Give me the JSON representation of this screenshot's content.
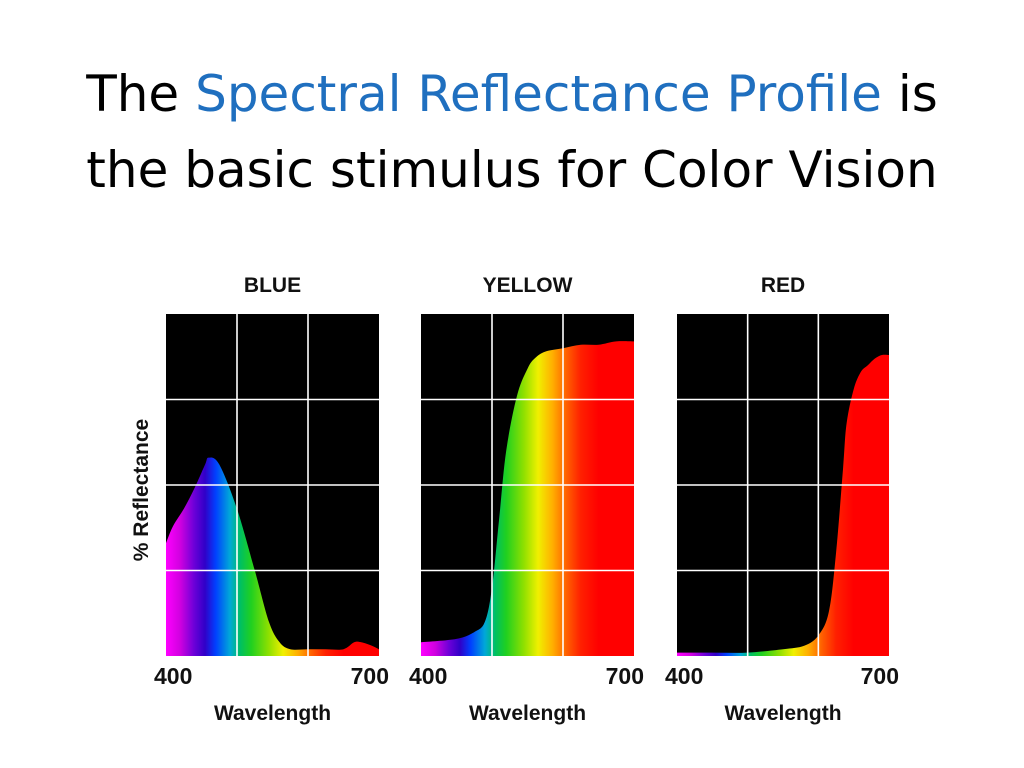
{
  "title": {
    "part1": "The ",
    "highlight": "Spectral Reflectance Profile",
    "part2": " is",
    "line2": "the basic stimulus for Color Vision",
    "highlight_color": "#1f6fbf"
  },
  "chart_data": [
    {
      "type": "area",
      "title": "BLUE",
      "xlabel": "Wavelength",
      "ylabel": "% Reflectance",
      "xlim": [
        400,
        700
      ],
      "x_tick_labels": [
        "400",
        "700"
      ],
      "grid": true,
      "x": [
        400,
        410,
        425,
        440,
        455,
        460,
        475,
        500,
        525,
        545,
        560,
        575,
        600,
        625,
        650,
        665,
        675,
        690,
        700
      ],
      "y": [
        0.33,
        0.38,
        0.43,
        0.49,
        0.56,
        0.58,
        0.56,
        0.43,
        0.25,
        0.1,
        0.04,
        0.02,
        0.02,
        0.02,
        0.02,
        0.04,
        0.04,
        0.03,
        0.02
      ]
    },
    {
      "type": "area",
      "title": "YELLOW",
      "xlabel": "Wavelength",
      "ylabel": "",
      "xlim": [
        400,
        700
      ],
      "x_tick_labels": [
        "400",
        "700"
      ],
      "grid": true,
      "x": [
        400,
        450,
        475,
        490,
        500,
        510,
        520,
        535,
        550,
        560,
        575,
        600,
        625,
        650,
        675,
        700
      ],
      "y": [
        0.04,
        0.05,
        0.07,
        0.1,
        0.2,
        0.4,
        0.6,
        0.76,
        0.84,
        0.87,
        0.89,
        0.9,
        0.91,
        0.91,
        0.92,
        0.92
      ]
    },
    {
      "type": "area",
      "title": "RED",
      "xlabel": "Wavelength",
      "ylabel": "",
      "xlim": [
        400,
        700
      ],
      "x_tick_labels": [
        "400",
        "700"
      ],
      "grid": true,
      "x": [
        400,
        450,
        500,
        550,
        580,
        600,
        615,
        625,
        635,
        640,
        650,
        660,
        670,
        680,
        690,
        700
      ],
      "y": [
        0.01,
        0.01,
        0.01,
        0.02,
        0.03,
        0.06,
        0.13,
        0.3,
        0.55,
        0.68,
        0.78,
        0.83,
        0.85,
        0.87,
        0.88,
        0.88
      ]
    }
  ]
}
